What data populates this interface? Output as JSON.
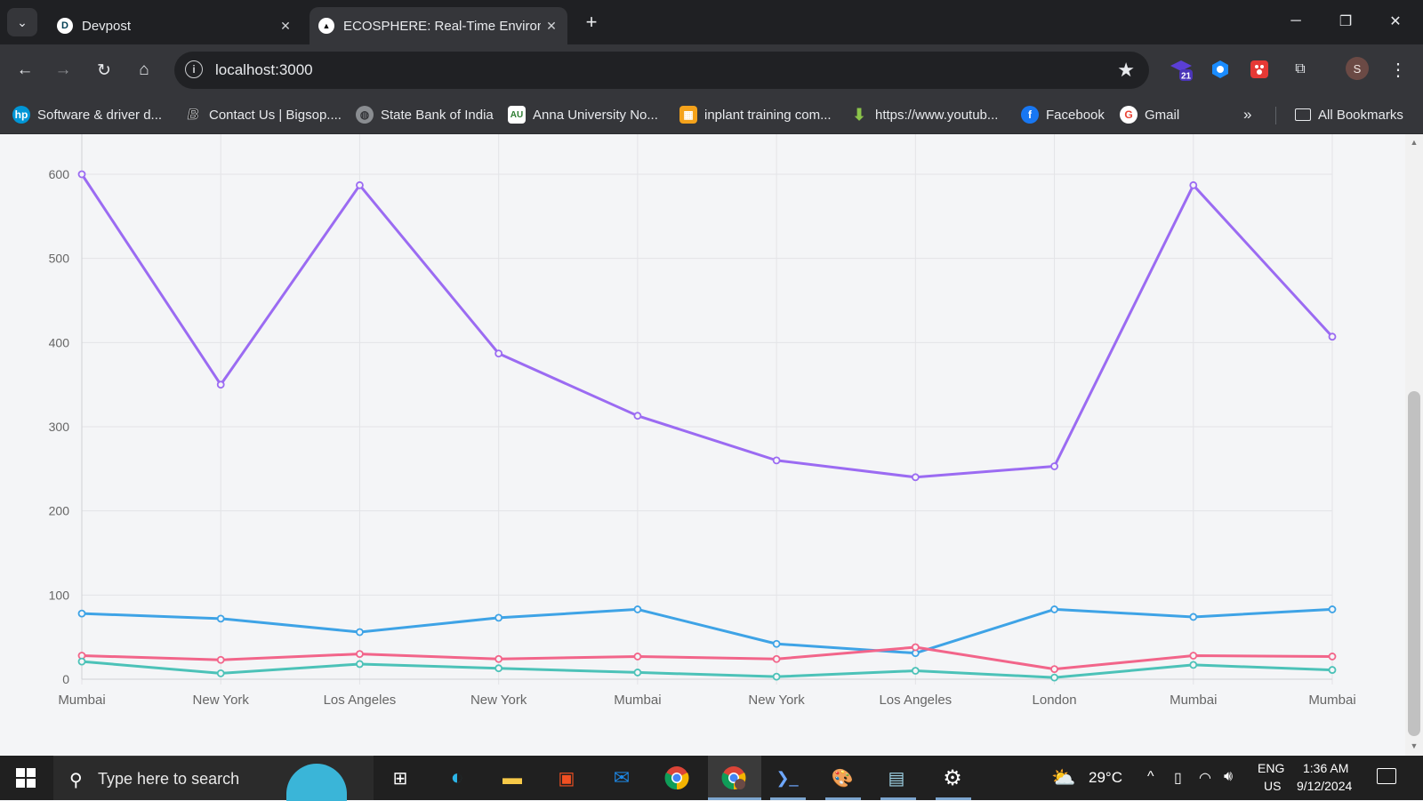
{
  "browser": {
    "tabs": [
      {
        "favicon": "D",
        "title": "Devpost"
      },
      {
        "favicon": "▲",
        "title": "ECOSPHERE: Real-Time Environ"
      }
    ],
    "url": "localhost:3000",
    "profile_initial": "S",
    "extension_badge": "21",
    "bookmarks": [
      {
        "label": "Software & driver d...",
        "icon": "hp-icon",
        "color": "#0096d6"
      },
      {
        "label": "Contact Us | Bigsop....",
        "icon": "b-logo-icon",
        "color": "#111111"
      },
      {
        "label": "State Bank of India",
        "icon": "globe-icon",
        "color": "#8a8d91"
      },
      {
        "label": "Anna University No...",
        "icon": "anna-univ-icon",
        "color": "#2e7d32"
      },
      {
        "label": "inplant training com...",
        "icon": "training-icon",
        "color": "#f4a21b"
      },
      {
        "label": "https://www.youtub...",
        "icon": "download-arrow-icon",
        "color": "#8bc34a"
      },
      {
        "label": "Facebook",
        "icon": "facebook-icon",
        "color": "#1877f2"
      },
      {
        "label": "Gmail",
        "icon": "google-icon",
        "color": "#ffffff"
      }
    ],
    "all_bookmarks": "All Bookmarks"
  },
  "chart_data": {
    "type": "line",
    "categories": [
      "Mumbai",
      "New York",
      "Los Angeles",
      "New York",
      "Mumbai",
      "New York",
      "Los Angeles",
      "London",
      "Mumbai",
      "Mumbai"
    ],
    "ylim": [
      0,
      600
    ],
    "yticks": [
      0,
      100,
      200,
      300,
      400,
      500,
      600
    ],
    "grid": true,
    "series": [
      {
        "color": "#9b6bf2",
        "values": [
          600,
          350,
          587,
          387,
          313,
          260,
          240,
          253,
          587,
          407
        ]
      },
      {
        "color": "#3ea3e6",
        "values": [
          78,
          72,
          56,
          73,
          83,
          42,
          31,
          83,
          74,
          83
        ]
      },
      {
        "color": "#f2658a",
        "values": [
          28,
          23,
          30,
          24,
          27,
          24,
          38,
          12,
          28,
          27
        ]
      },
      {
        "color": "#4cc2b8",
        "values": [
          21,
          7,
          18,
          13,
          8,
          3,
          10,
          2,
          17,
          11
        ]
      }
    ]
  },
  "taskbar": {
    "search_placeholder": "Type here to search",
    "temperature": "29°C",
    "lang1": "ENG",
    "lang2": "US",
    "time": "1:36 AM",
    "date": "9/12/2024"
  }
}
